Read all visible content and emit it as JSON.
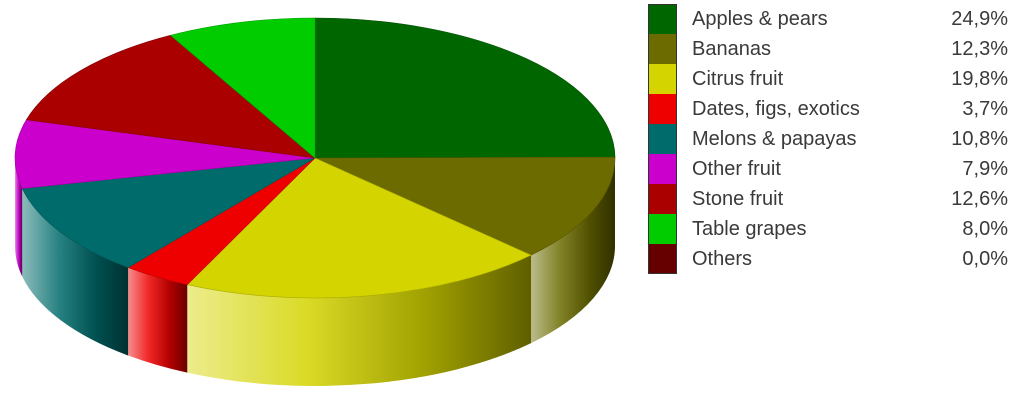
{
  "chart_data": {
    "type": "pie",
    "style": "3d-pie",
    "legend_position": "right",
    "slices": [
      {
        "label": "Apples & pears",
        "value_text": "24,9%",
        "value": 24.9,
        "color": "#006600"
      },
      {
        "label": "Bananas",
        "value_text": "12,3%",
        "value": 12.3,
        "color": "#6b6b00"
      },
      {
        "label": "Citrus fruit",
        "value_text": "19,8%",
        "value": 19.8,
        "color": "#d4d400"
      },
      {
        "label": "Dates, figs, exotics",
        "value_text": "3,7%",
        "value": 3.7,
        "color": "#ee0000"
      },
      {
        "label": "Melons & papayas",
        "value_text": "10,8%",
        "value": 10.8,
        "color": "#006b6b"
      },
      {
        "label": "Other fruit",
        "value_text": "7,9%",
        "value": 7.9,
        "color": "#cc00cc"
      },
      {
        "label": "Stone fruit",
        "value_text": "12,6%",
        "value": 12.6,
        "color": "#aa0000"
      },
      {
        "label": "Table grapes",
        "value_text": "8,0%",
        "value": 8.0,
        "color": "#00cc00"
      },
      {
        "label": "Others",
        "value_text": "0,0%",
        "value": 0.0,
        "color": "#660000"
      }
    ]
  }
}
